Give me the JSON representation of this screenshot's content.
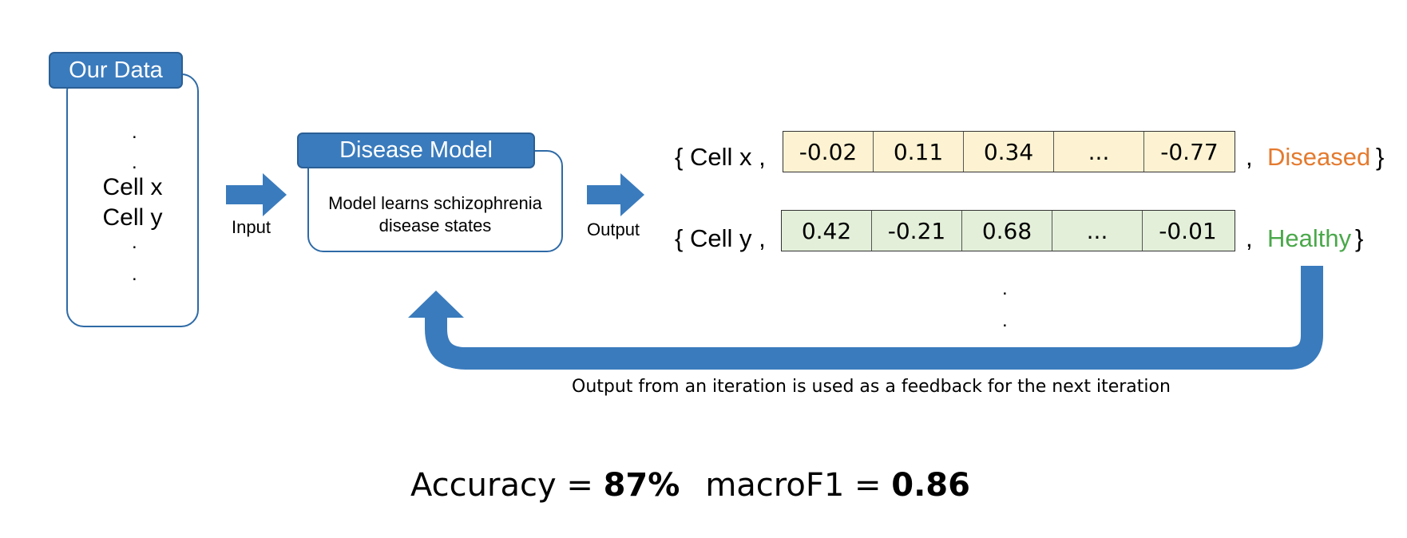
{
  "colors": {
    "accent_blue": "#3a7bbd",
    "border_blue": "#2e6aa6",
    "diseased": "#e47a2e",
    "healthy": "#4aa84a",
    "yellow_cells": "#fdf3d2",
    "green_cells": "#e3efd9"
  },
  "data_panel": {
    "title": "Our Data",
    "dot": ".",
    "items": [
      "Cell x",
      "Cell y"
    ]
  },
  "arrows": {
    "input_label": "Input",
    "output_label": "Output",
    "icons": [
      "right-arrow-icon",
      "feedback-arrow-icon"
    ]
  },
  "model_panel": {
    "title": "Disease Model",
    "description_line1": "Model learns schizophrenia",
    "description_line2": "disease states"
  },
  "outputs": [
    {
      "prefix": "{ Cell x ,",
      "values": [
        "-0.02",
        "0.11",
        "0.34",
        "...",
        "-0.77"
      ],
      "comma": ",",
      "label": "Diseased",
      "suffix": "}"
    },
    {
      "prefix": "{ Cell y ,",
      "values": [
        "0.42",
        "-0.21",
        "0.68",
        "...",
        "-0.01"
      ],
      "comma": ",",
      "label": "Healthy",
      "suffix": "}"
    }
  ],
  "continuation_dot": ".",
  "feedback_caption": "Output from an iteration is used as a feedback for the next iteration",
  "metrics": {
    "accuracy_label": "Accuracy = ",
    "accuracy_value": "87%",
    "f1_label": "macroF1 = ",
    "f1_value": "0.86"
  }
}
